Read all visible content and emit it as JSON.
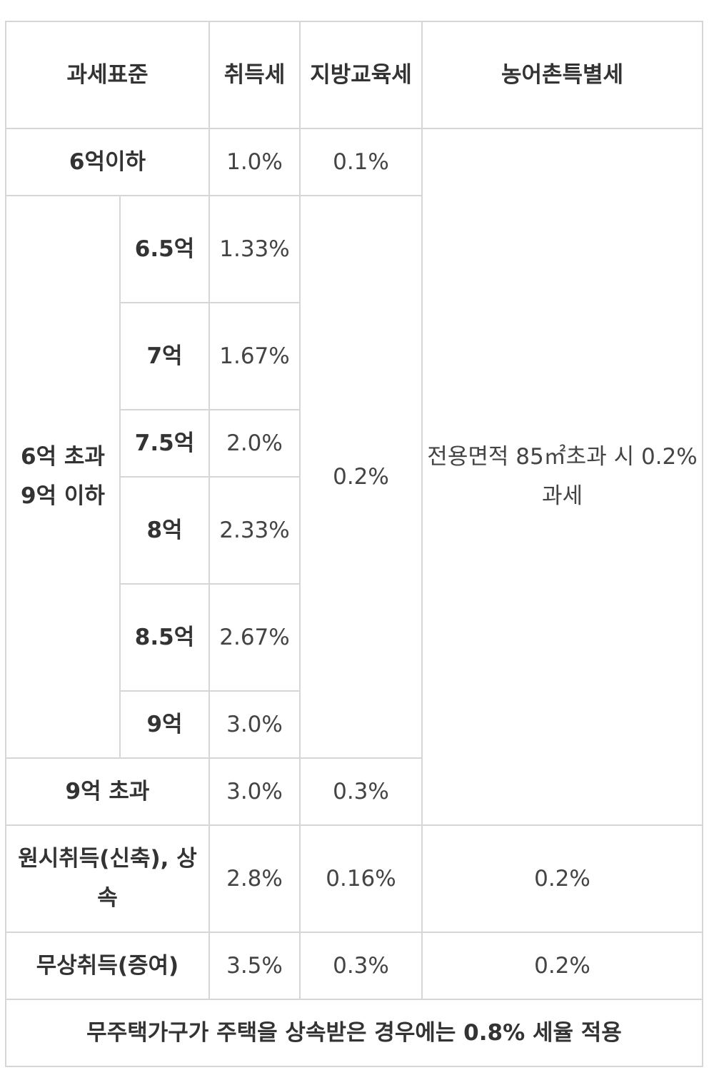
{
  "header": {
    "col_base": "과세표준",
    "col_acq": "취득세",
    "col_edu": "지방교육세",
    "col_rural": "농어촌특별세"
  },
  "rows": {
    "r1": {
      "label": "6억이하",
      "acq": "1.0%",
      "edu": "0.1%"
    },
    "group_label": "6억 초과 9억 이하",
    "sub": [
      {
        "label": "6.5억",
        "acq": "1.33%"
      },
      {
        "label": "7억",
        "acq": "1.67%"
      },
      {
        "label": "7.5억",
        "acq": "2.0%"
      },
      {
        "label": "8억",
        "acq": "2.33%"
      },
      {
        "label": "8.5억",
        "acq": "2.67%"
      },
      {
        "label": "9억",
        "acq": "3.0%"
      }
    ],
    "group_edu": "0.2%",
    "rural_merged": "전용면적 85㎡초과 시 0.2% 과세",
    "r_over9": {
      "label": "9억 초과",
      "acq": "3.0%",
      "edu": "0.3%"
    },
    "r_original": {
      "label": "원시취득(신축), 상속",
      "acq": "2.8%",
      "edu": "0.16%",
      "rural": "0.2%"
    },
    "r_gift": {
      "label": "무상취득(증여)",
      "acq": "3.5%",
      "edu": "0.3%",
      "rural": "0.2%"
    }
  },
  "footer_note": "무주택가구가 주택을 상속받은 경우에는 0.8% 세율 적용"
}
